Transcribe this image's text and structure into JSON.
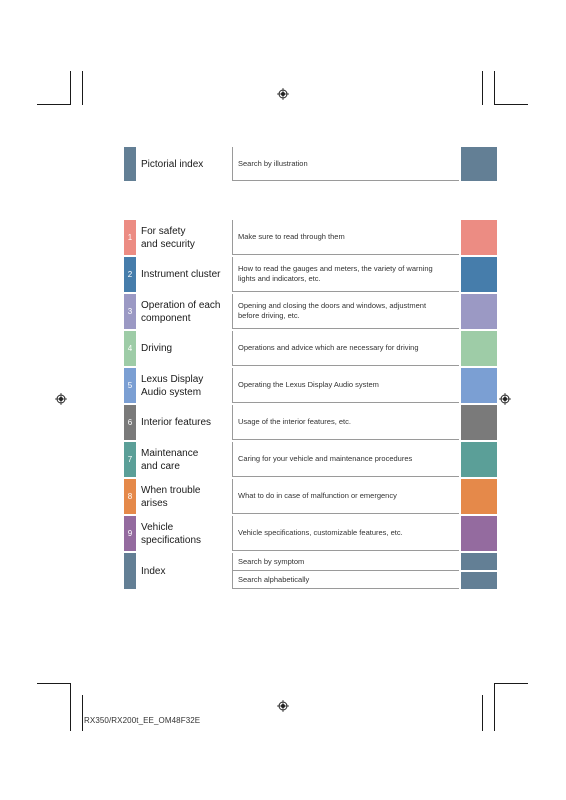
{
  "document": {
    "footer_code": "RX350/RX200t_EE_OM48F32E"
  },
  "pictorial": {
    "title": "Pictorial index",
    "desc": "Search by illustration",
    "color": "#637f95"
  },
  "sections": [
    {
      "num": "1",
      "title_line1": "For safety",
      "title_line2": "and security",
      "desc_line1": "Make sure to read through them",
      "desc_line2": "",
      "color": "#ec8c83"
    },
    {
      "num": "2",
      "title_line1": "Instrument cluster",
      "title_line2": "",
      "desc_line1": "How to read the gauges and meters, the variety of warning",
      "desc_line2": "lights and indicators, etc.",
      "color": "#467dab"
    },
    {
      "num": "3",
      "title_line1": "Operation of each",
      "title_line2": "component",
      "desc_line1": "Opening and closing the doors and windows, adjustment",
      "desc_line2": "before driving, etc.",
      "color": "#9b99c4"
    },
    {
      "num": "4",
      "title_line1": "Driving",
      "title_line2": "",
      "desc_line1": "Operations and advice which are necessary for driving",
      "desc_line2": "",
      "color": "#9ecca7"
    },
    {
      "num": "5",
      "title_line1": "Lexus Display",
      "title_line2": "Audio system",
      "desc_line1": "Operating the Lexus Display Audio system",
      "desc_line2": "",
      "color": "#7b9fd3"
    },
    {
      "num": "6",
      "title_line1": "Interior features",
      "title_line2": "",
      "desc_line1": "Usage of the interior features, etc.",
      "desc_line2": "",
      "color": "#7a7a7a"
    },
    {
      "num": "7",
      "title_line1": "Maintenance",
      "title_line2": "and care",
      "desc_line1": "Caring for your vehicle and maintenance procedures",
      "desc_line2": "",
      "color": "#5b9f98"
    },
    {
      "num": "8",
      "title_line1": "When trouble",
      "title_line2": "arises",
      "desc_line1": "What to do in case of malfunction or emergency",
      "desc_line2": "",
      "color": "#e5894a"
    },
    {
      "num": "9",
      "title_line1": "Vehicle",
      "title_line2": "specifications",
      "desc_line1": "Vehicle specifications, customizable features, etc.",
      "desc_line2": "",
      "color": "#946b9f"
    }
  ],
  "index": {
    "title": "Index",
    "desc_symptom": "Search by symptom",
    "desc_alpha": "Search alphabetically",
    "color": "#637f95"
  }
}
